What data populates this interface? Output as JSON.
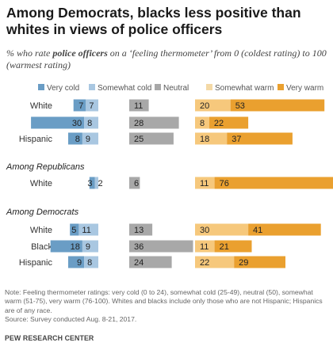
{
  "title": "Among Democrats, blacks less positive than whites in views of police officers",
  "subtitle": {
    "pre": "% who rate ",
    "bold": "police officers",
    "post": " on a ‘feeling thermometer’ from 0 (coldest rating) to 100 (warmest rating)"
  },
  "note": "Note: Feeling thermometer ratings: very cold (0 to 24), somewhat cold (25-49), neutral (50), somewhat warm (51-75), very warm (76-100). Whites and blacks include only those who are not Hispanic; Hispanics are of any race.",
  "source": "Source: Survey conducted Aug. 8-21, 2017.",
  "brand": "PEW RESEARCH CENTER",
  "colors": {
    "very_cold": "#6a9dc5",
    "somewhat_cold": "#a9c7e1",
    "neutral": "#a8a8a8",
    "somewhat_warm": "#f6c87c",
    "very_warm": "#eaa02f",
    "swatch_somewhat_warm": "#f4d9a6"
  },
  "chart_data": {
    "type": "bar",
    "legend": [
      "Very cold",
      "Somewhat cold",
      "Neutral",
      "Somewhat warm",
      "Very warm"
    ],
    "legend_position": "top",
    "groups": [
      {
        "label": "",
        "rows": [
          {
            "category": "White",
            "very_cold": 7,
            "somewhat_cold": 7,
            "neutral": 11,
            "somewhat_warm": 20,
            "very_warm": 53
          },
          {
            "category": "Black",
            "very_cold": 30,
            "somewhat_cold": 8,
            "neutral": 28,
            "somewhat_warm": 8,
            "very_warm": 22
          },
          {
            "category": "Hispanic",
            "very_cold": 8,
            "somewhat_cold": 9,
            "neutral": 25,
            "somewhat_warm": 18,
            "very_warm": 37
          }
        ]
      },
      {
        "label": "Among Republicans",
        "rows": [
          {
            "category": "White",
            "very_cold": 3,
            "somewhat_cold": 2,
            "neutral": 6,
            "somewhat_warm": 11,
            "very_warm": 76
          }
        ]
      },
      {
        "label": "Among Democrats",
        "rows": [
          {
            "category": "White",
            "very_cold": 5,
            "somewhat_cold": 11,
            "neutral": 13,
            "somewhat_warm": 30,
            "very_warm": 41
          },
          {
            "category": "Black",
            "very_cold": 18,
            "somewhat_cold": 9,
            "neutral": 36,
            "somewhat_warm": 11,
            "very_warm": 21
          },
          {
            "category": "Hispanic",
            "very_cold": 9,
            "somewhat_cold": 8,
            "neutral": 24,
            "somewhat_warm": 22,
            "very_warm": 29
          }
        ]
      }
    ]
  }
}
